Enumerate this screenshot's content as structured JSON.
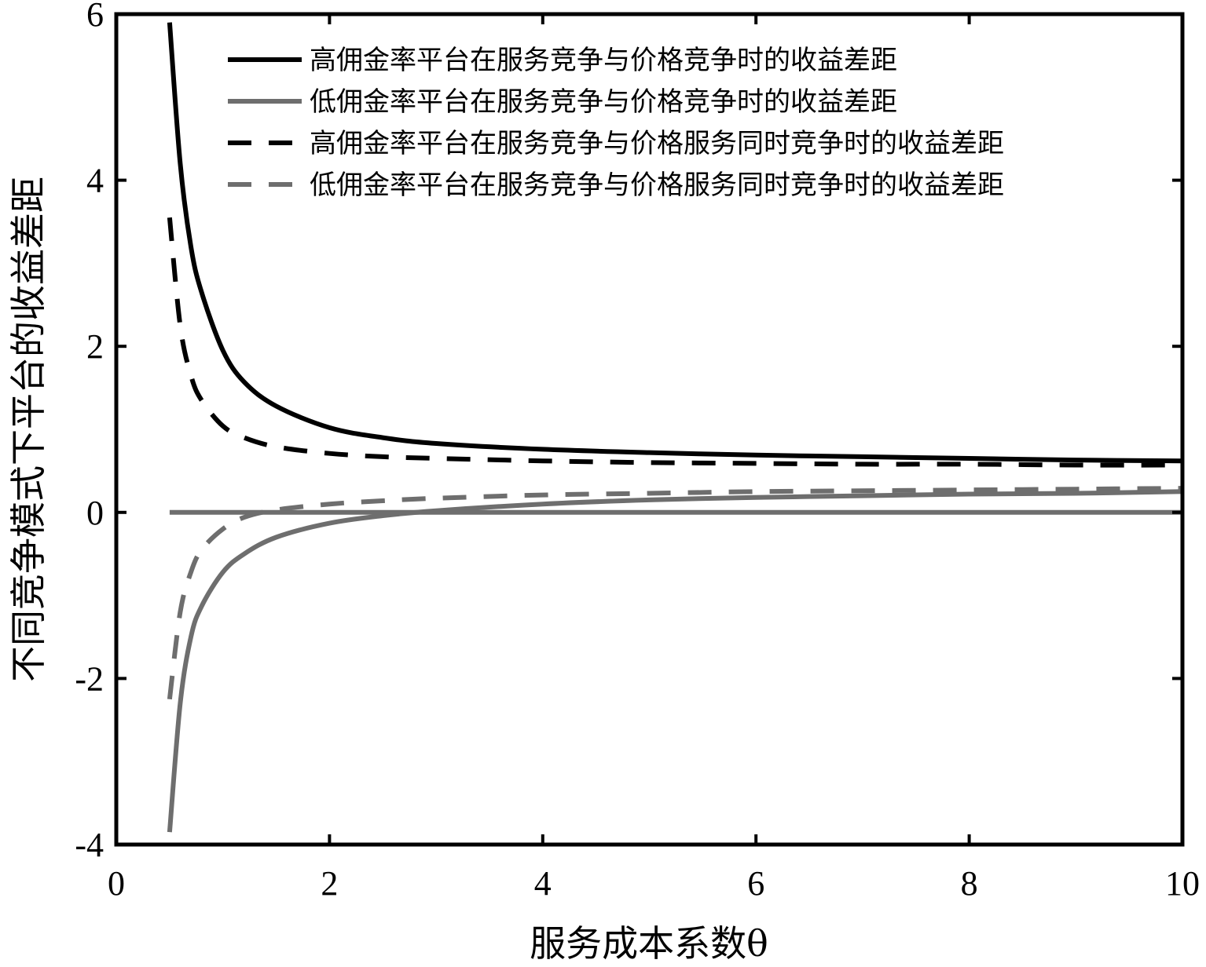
{
  "chart_data": {
    "type": "line",
    "title": "",
    "xlabel": "服务成本系数θ",
    "ylabel": "不同竞争模式下平台的收益差距",
    "xlim": [
      0,
      10
    ],
    "ylim": [
      -4,
      6
    ],
    "xticks": [
      0,
      2,
      4,
      6,
      8,
      10
    ],
    "yticks": [
      -4,
      -2,
      0,
      2,
      4,
      6
    ],
    "xtick_labels": [
      "0",
      "2",
      "4",
      "6",
      "8",
      "10"
    ],
    "ytick_labels": [
      "-4",
      "-2",
      "0",
      "2",
      "4",
      "6"
    ],
    "grid": false,
    "legend_position": "top-right",
    "x": [
      0.5,
      0.6,
      0.7,
      0.8,
      1.0,
      1.2,
      1.5,
      2.0,
      2.5,
      3.0,
      4.0,
      5.0,
      6.0,
      7.0,
      8.0,
      9.0,
      10.0
    ],
    "series": [
      {
        "name": "高佣金率平台在服务竞争与价格竞争时的收益差距",
        "color": "#000000",
        "dash": "solid",
        "values": [
          5.9,
          4.2,
          3.2,
          2.65,
          1.95,
          1.57,
          1.28,
          1.02,
          0.9,
          0.83,
          0.76,
          0.72,
          0.69,
          0.67,
          0.65,
          0.63,
          0.62
        ]
      },
      {
        "name": "低佣金率平台在服务竞争与价格竞争时的收益差距",
        "color": "#6e6e6e",
        "dash": "solid",
        "values": [
          -3.85,
          -2.3,
          -1.5,
          -1.13,
          -0.72,
          -0.5,
          -0.3,
          -0.13,
          -0.04,
          0.02,
          0.1,
          0.15,
          0.18,
          0.2,
          0.22,
          0.23,
          0.25
        ]
      },
      {
        "name": "高佣金率平台在服务竞争与价格服务同时竞争时的收益差距",
        "color": "#000000",
        "dash": "dashed",
        "values": [
          3.55,
          2.25,
          1.65,
          1.35,
          1.04,
          0.9,
          0.79,
          0.71,
          0.67,
          0.65,
          0.62,
          0.6,
          0.59,
          0.58,
          0.58,
          0.57,
          0.57
        ]
      },
      {
        "name": "低佣金率平台在服务竞争与价格服务同时竞争时的收益差距",
        "color": "#6e6e6e",
        "dash": "dashed",
        "values": [
          -2.25,
          -1.2,
          -0.72,
          -0.45,
          -0.2,
          -0.06,
          0.03,
          0.1,
          0.14,
          0.17,
          0.21,
          0.23,
          0.25,
          0.26,
          0.27,
          0.28,
          0.29
        ]
      },
      {
        "name": "",
        "color": "#6e6e6e",
        "dash": "solid",
        "values": [
          0,
          0,
          0,
          0,
          0,
          0,
          0,
          0,
          0,
          0,
          0,
          0,
          0,
          0,
          0,
          0,
          0
        ]
      }
    ]
  }
}
